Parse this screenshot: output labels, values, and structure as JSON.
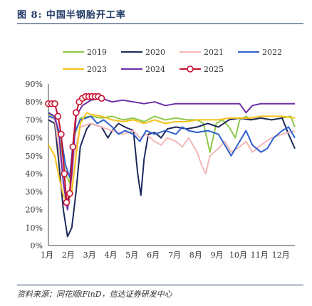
{
  "figure_label": "图 8:",
  "figure_title": "中国半钢胎开工率",
  "source": "资料来源：同花顺iFinD，信达证券研发中心",
  "chart_data": {
    "type": "line",
    "title": "中国半钢胎开工率",
    "xlabel": "",
    "ylabel": "",
    "x_tick_labels": [
      "1月",
      "2月",
      "3月",
      "4月",
      "5月",
      "6月",
      "7月",
      "8月",
      "9月",
      "10月",
      "11月",
      "12月"
    ],
    "y_tick_labels": [
      "0%",
      "10%",
      "20%",
      "30%",
      "40%",
      "50%",
      "60%",
      "70%",
      "80%",
      "90%"
    ],
    "ylim": [
      0,
      90
    ],
    "xlim": [
      1,
      12.6
    ],
    "grid": false,
    "legend_position": "top",
    "series": [
      {
        "name": "2019",
        "color": "#8fc74a",
        "marker": false,
        "points": [
          [
            1,
            73
          ],
          [
            1.3,
            72
          ],
          [
            1.6,
            55
          ],
          [
            1.8,
            40
          ],
          [
            2.0,
            35
          ],
          [
            2.2,
            60
          ],
          [
            2.5,
            71
          ],
          [
            3,
            72
          ],
          [
            3.5,
            71
          ],
          [
            4,
            72
          ],
          [
            4.5,
            70
          ],
          [
            5,
            71
          ],
          [
            5.5,
            69
          ],
          [
            6,
            72
          ],
          [
            6.5,
            70
          ],
          [
            7,
            71
          ],
          [
            7.5,
            70
          ],
          [
            8,
            70
          ],
          [
            8.3,
            68
          ],
          [
            8.6,
            52
          ],
          [
            8.9,
            68
          ],
          [
            9.2,
            70
          ],
          [
            9.5,
            66
          ],
          [
            9.8,
            60
          ],
          [
            10,
            70
          ],
          [
            10.3,
            72
          ],
          [
            10.6,
            70
          ],
          [
            11,
            71
          ],
          [
            11.5,
            70
          ],
          [
            12,
            71
          ],
          [
            12.4,
            72
          ],
          [
            12.6,
            66
          ]
        ]
      },
      {
        "name": "2020",
        "color": "#1f2a5c",
        "marker": false,
        "points": [
          [
            1,
            70
          ],
          [
            1.3,
            68
          ],
          [
            1.5,
            45
          ],
          [
            1.7,
            20
          ],
          [
            1.9,
            5
          ],
          [
            2.1,
            10
          ],
          [
            2.3,
            30
          ],
          [
            2.5,
            55
          ],
          [
            2.8,
            65
          ],
          [
            3,
            68
          ],
          [
            3.5,
            66
          ],
          [
            3.8,
            60
          ],
          [
            4,
            64
          ],
          [
            4.3,
            68
          ],
          [
            4.6,
            66
          ],
          [
            5,
            64
          ],
          [
            5.2,
            40
          ],
          [
            5.35,
            28
          ],
          [
            5.5,
            48
          ],
          [
            5.7,
            62
          ],
          [
            6,
            63
          ],
          [
            6.3,
            60
          ],
          [
            6.6,
            65
          ],
          [
            7,
            66
          ],
          [
            7.5,
            65
          ],
          [
            8,
            66
          ],
          [
            8.5,
            68
          ],
          [
            9,
            66
          ],
          [
            9.5,
            70
          ],
          [
            10,
            71
          ],
          [
            10.5,
            70
          ],
          [
            11,
            71
          ],
          [
            11.5,
            70
          ],
          [
            12,
            71
          ],
          [
            12.3,
            62
          ],
          [
            12.6,
            54
          ]
        ]
      },
      {
        "name": "2021",
        "color": "#f2b8b8",
        "marker": false,
        "points": [
          [
            1,
            72
          ],
          [
            1.3,
            70
          ],
          [
            1.6,
            45
          ],
          [
            1.8,
            30
          ],
          [
            2.0,
            25
          ],
          [
            2.2,
            50
          ],
          [
            2.5,
            66
          ],
          [
            3,
            68
          ],
          [
            3.5,
            66
          ],
          [
            4,
            64
          ],
          [
            4.5,
            62
          ],
          [
            5,
            64
          ],
          [
            5.3,
            60
          ],
          [
            5.6,
            62
          ],
          [
            6,
            58
          ],
          [
            6.3,
            56
          ],
          [
            6.6,
            60
          ],
          [
            7,
            58
          ],
          [
            7.3,
            55
          ],
          [
            7.6,
            60
          ],
          [
            8,
            52
          ],
          [
            8.2,
            45
          ],
          [
            8.4,
            40
          ],
          [
            8.6,
            50
          ],
          [
            9,
            54
          ],
          [
            9.3,
            58
          ],
          [
            9.6,
            52
          ],
          [
            10,
            55
          ],
          [
            10.3,
            58
          ],
          [
            10.6,
            52
          ],
          [
            11,
            56
          ],
          [
            11.5,
            60
          ],
          [
            12,
            62
          ],
          [
            12.6,
            64
          ]
        ]
      },
      {
        "name": "2022",
        "color": "#2e5fcf",
        "marker": false,
        "points": [
          [
            1,
            72
          ],
          [
            1.3,
            71
          ],
          [
            1.6,
            60
          ],
          [
            1.8,
            45
          ],
          [
            2.0,
            38
          ],
          [
            2.2,
            62
          ],
          [
            2.5,
            70
          ],
          [
            3,
            72
          ],
          [
            3.3,
            68
          ],
          [
            3.6,
            70
          ],
          [
            4,
            66
          ],
          [
            4.3,
            62
          ],
          [
            4.6,
            64
          ],
          [
            5,
            62
          ],
          [
            5.3,
            58
          ],
          [
            5.6,
            64
          ],
          [
            6,
            62
          ],
          [
            6.5,
            64
          ],
          [
            7,
            62
          ],
          [
            7.3,
            66
          ],
          [
            7.6,
            64
          ],
          [
            8,
            63
          ],
          [
            8.5,
            64
          ],
          [
            9,
            62
          ],
          [
            9.3,
            56
          ],
          [
            9.6,
            50
          ],
          [
            10,
            58
          ],
          [
            10.3,
            64
          ],
          [
            10.6,
            56
          ],
          [
            11,
            52
          ],
          [
            11.3,
            54
          ],
          [
            11.6,
            60
          ],
          [
            12,
            64
          ],
          [
            12.3,
            66
          ],
          [
            12.6,
            60
          ]
        ]
      },
      {
        "name": "2023",
        "color": "#f6c11a",
        "marker": false,
        "points": [
          [
            1,
            56
          ],
          [
            1.3,
            50
          ],
          [
            1.5,
            38
          ],
          [
            1.7,
            28
          ],
          [
            1.9,
            24
          ],
          [
            2.1,
            30
          ],
          [
            2.3,
            50
          ],
          [
            2.5,
            68
          ],
          [
            2.8,
            74
          ],
          [
            3,
            73
          ],
          [
            3.5,
            72
          ],
          [
            4,
            70
          ],
          [
            4.5,
            69
          ],
          [
            5,
            70
          ],
          [
            5.5,
            68
          ],
          [
            6,
            70
          ],
          [
            6.5,
            68
          ],
          [
            7,
            69
          ],
          [
            7.5,
            69
          ],
          [
            8,
            70
          ],
          [
            8.5,
            70
          ],
          [
            9,
            70
          ],
          [
            9.5,
            71
          ],
          [
            10,
            71
          ],
          [
            10.5,
            71
          ],
          [
            11,
            72
          ],
          [
            11.5,
            72
          ],
          [
            12,
            72
          ],
          [
            12.6,
            71
          ]
        ]
      },
      {
        "name": "2024",
        "color": "#6b2fa8",
        "marker": false,
        "points": [
          [
            1,
            74
          ],
          [
            1.3,
            72
          ],
          [
            1.5,
            62
          ],
          [
            1.7,
            35
          ],
          [
            1.9,
            20
          ],
          [
            2.1,
            40
          ],
          [
            2.3,
            72
          ],
          [
            2.6,
            78
          ],
          [
            3,
            81
          ],
          [
            3.5,
            82
          ],
          [
            4,
            80
          ],
          [
            4.5,
            81
          ],
          [
            5,
            80
          ],
          [
            5.5,
            79
          ],
          [
            6,
            80
          ],
          [
            6.5,
            78
          ],
          [
            7,
            79
          ],
          [
            7.5,
            79
          ],
          [
            8,
            79
          ],
          [
            8.5,
            79
          ],
          [
            9,
            79
          ],
          [
            9.5,
            79
          ],
          [
            10,
            79
          ],
          [
            10.3,
            74
          ],
          [
            10.6,
            78
          ],
          [
            11,
            79
          ],
          [
            11.5,
            79
          ],
          [
            12,
            79
          ],
          [
            12.6,
            79
          ]
        ]
      },
      {
        "name": "2025",
        "color": "#c8102e",
        "marker": true,
        "points": [
          [
            1.0,
            79
          ],
          [
            1.15,
            79
          ],
          [
            1.3,
            79
          ],
          [
            1.45,
            72
          ],
          [
            1.6,
            62
          ],
          [
            1.75,
            40
          ],
          [
            1.85,
            24
          ],
          [
            2.0,
            29
          ],
          [
            2.15,
            55
          ],
          [
            2.3,
            74
          ],
          [
            2.45,
            80
          ],
          [
            2.6,
            82
          ],
          [
            2.75,
            83
          ],
          [
            2.9,
            83
          ],
          [
            3.05,
            83
          ],
          [
            3.2,
            83
          ],
          [
            3.35,
            83
          ],
          [
            3.5,
            82
          ]
        ]
      }
    ]
  }
}
